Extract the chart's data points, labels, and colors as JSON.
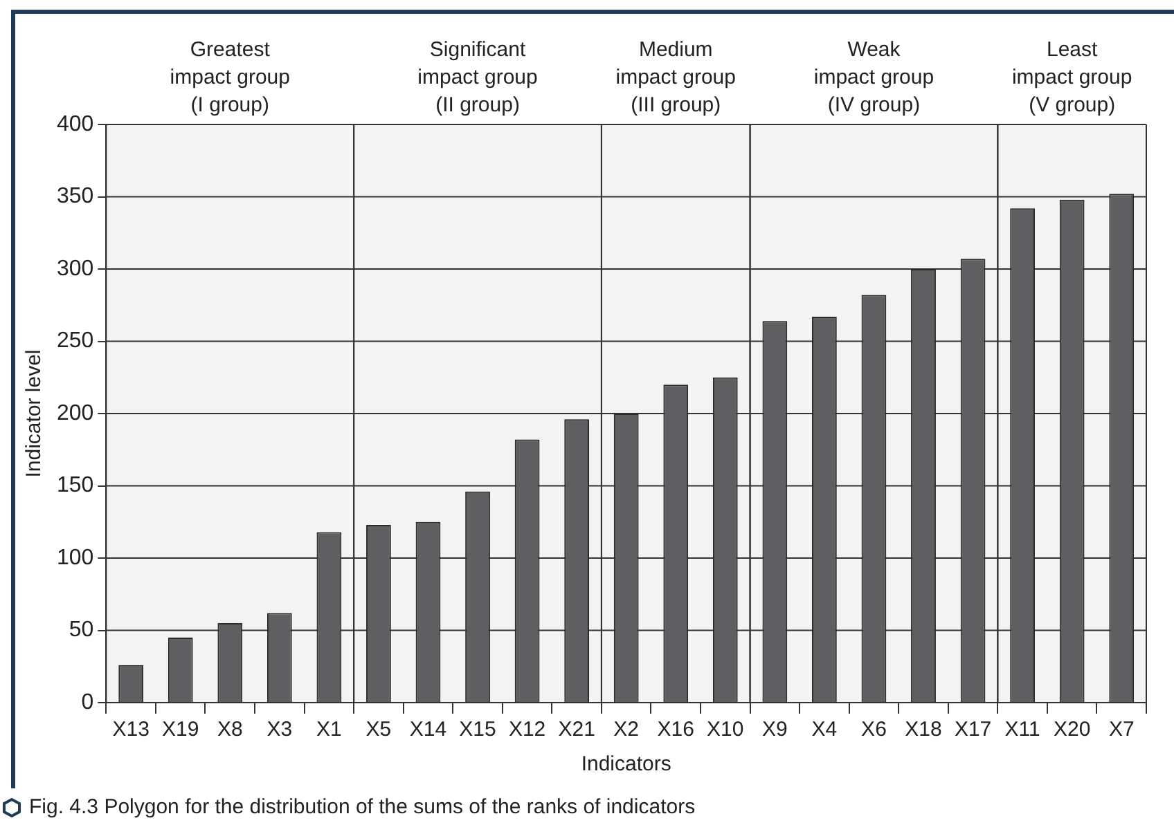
{
  "chart_data": {
    "type": "bar",
    "xlabel": "Indicators",
    "ylabel": "Indicator level",
    "categories": [
      "X13",
      "X19",
      "X8",
      "X3",
      "X1",
      "X5",
      "X14",
      "X15",
      "X12",
      "X21",
      "X2",
      "X16",
      "X10",
      "X9",
      "X4",
      "X6",
      "X18",
      "X17",
      "X11",
      "X20",
      "X7"
    ],
    "values": [
      26,
      45,
      55,
      62,
      118,
      123,
      125,
      146,
      182,
      196,
      200,
      220,
      225,
      264,
      267,
      282,
      300,
      307,
      342,
      348,
      352
    ],
    "color": "#5f5f61",
    "ylim": [
      0,
      400
    ],
    "yticks": [
      0,
      50,
      100,
      150,
      200,
      250,
      300,
      350,
      400
    ],
    "grid": "y",
    "bands": [
      {
        "axis": "x",
        "from": "X13",
        "to": "X1",
        "label": "Greatest\nimpact group\n(I group)",
        "color": "#f3f3f3"
      },
      {
        "axis": "x",
        "from": "X5",
        "to": "X21",
        "label": "Significant\nimpact group\n(II group)",
        "color": "#f3f3f3"
      },
      {
        "axis": "x",
        "from": "X2",
        "to": "X10",
        "label": "Medium\nimpact group\n(III group)",
        "color": "#f3f3f3"
      },
      {
        "axis": "x",
        "from": "X9",
        "to": "X17",
        "label": "Weak\nimpact group\n(IV group)",
        "color": "#f3f3f3"
      },
      {
        "axis": "x",
        "from": "X11",
        "to": "X7",
        "label": "Least\nimpact group\n(V group)",
        "color": "#f3f3f3"
      }
    ],
    "annotations": [
      "Fig. 4.3 Polygon for the distribution of the sums of the ranks of indicators"
    ]
  }
}
